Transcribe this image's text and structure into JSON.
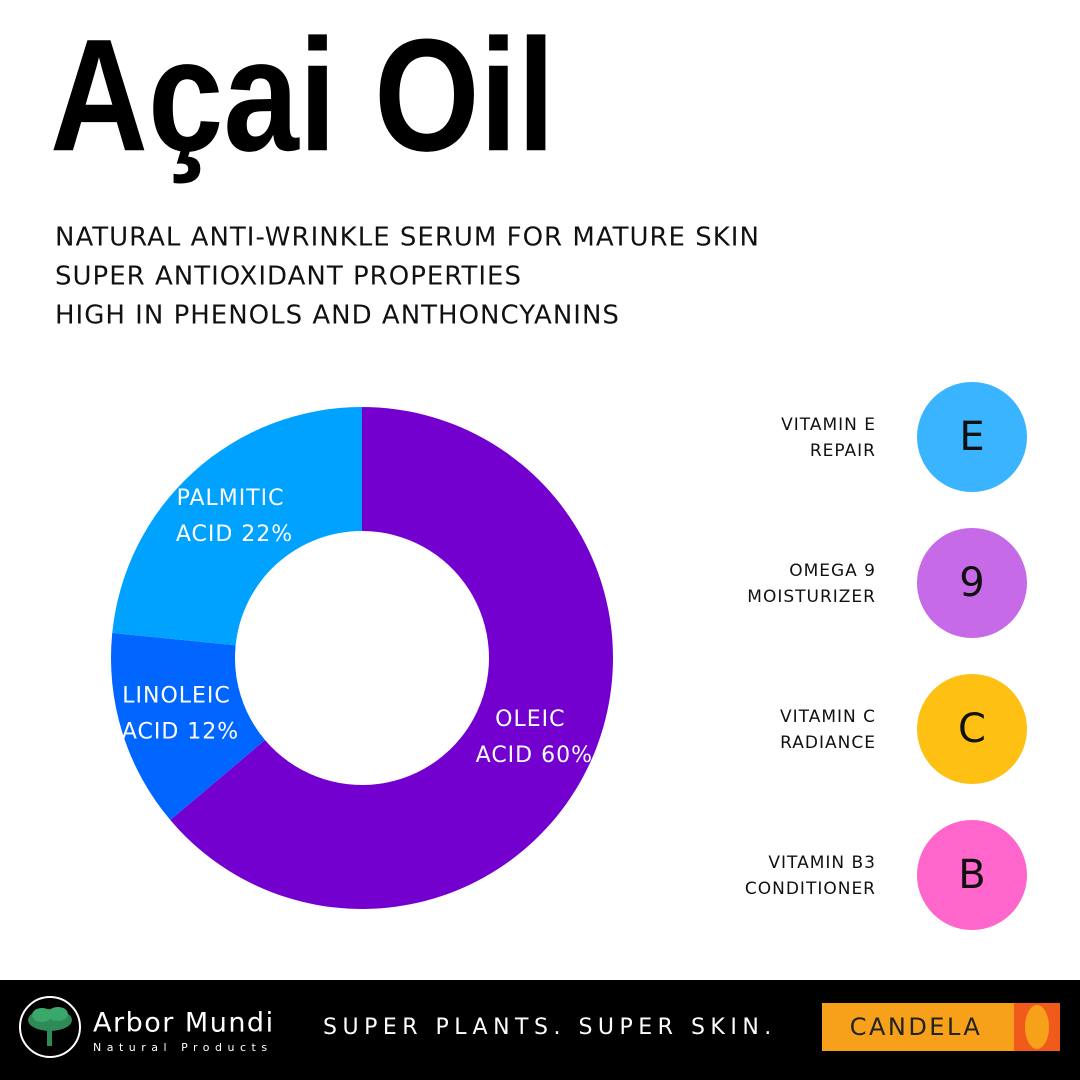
{
  "header": {
    "title": "Açai Oil",
    "lines": [
      "NATURAL ANTI-WRINKLE SERUM FOR MATURE SKIN",
      "SUPER ANTIOXIDANT PROPERTIES",
      "HIGH IN PHENOLS AND ANTHONCYANINS"
    ]
  },
  "chart_data": {
    "type": "pie",
    "donut": true,
    "values": [
      60,
      12,
      22
    ],
    "value_labels": [
      "OLEIC ACID 60%",
      "LINOLEIC ACID 12%",
      "PALMITIC ACID 22%"
    ],
    "colors": [
      "#7400cf",
      "#0066ff",
      "#00a2ff"
    ]
  },
  "nutrients": [
    {
      "name": "VITAMIN E",
      "benefit": "REPAIR",
      "symbol": "E",
      "color": "#3ab4ff"
    },
    {
      "name": "OMEGA 9",
      "benefit": "MOISTURIZER",
      "symbol": "9",
      "color": "#c76ae8"
    },
    {
      "name": "VITAMIN C",
      "benefit": "RADIANCE",
      "symbol": "C",
      "color": "#ffc014"
    },
    {
      "name": "VITAMIN B3",
      "benefit": "CONDITIONER",
      "symbol": "B",
      "color": "#ff66cc"
    }
  ],
  "footer": {
    "brand": "Arbor Mundi",
    "brand_subtitle": "Natural Products",
    "tagline": "SUPER PLANTS. SUPER SKIN.",
    "partner": "CANDELA"
  }
}
